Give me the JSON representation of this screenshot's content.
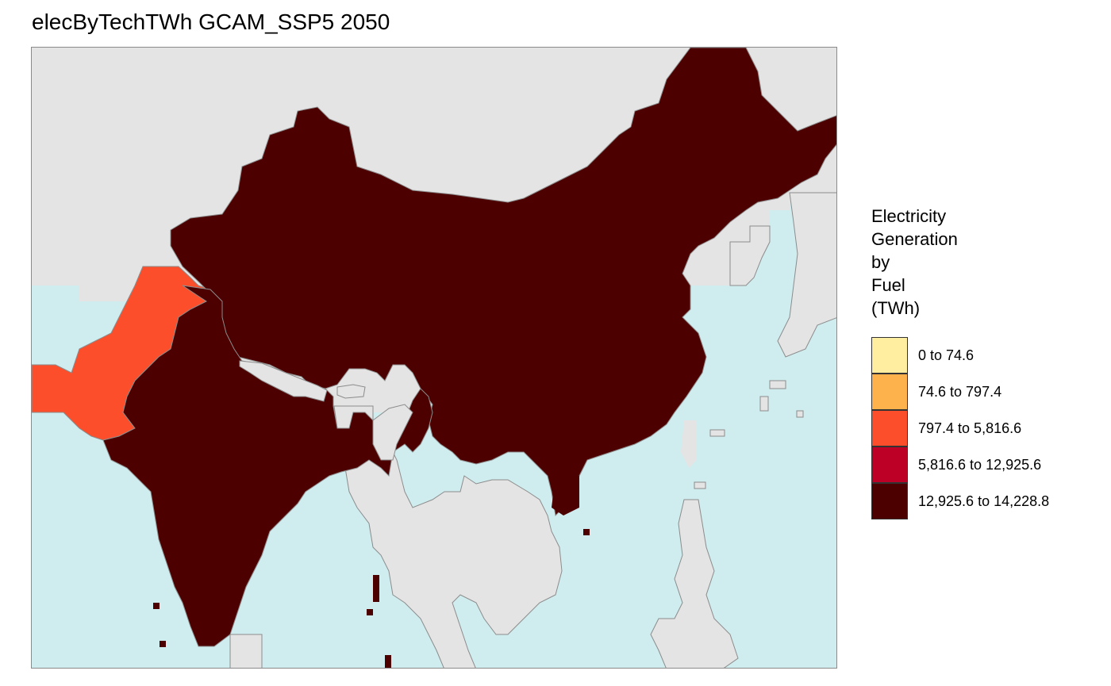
{
  "title": "elecByTechTWh GCAM_SSP5 2050",
  "colors": {
    "ocean": "#cfecee",
    "land_no_data": "#e4e4e4",
    "border": "#8c8c8c",
    "frame": "#8a8a8a"
  },
  "legend": {
    "title_lines": [
      "Electricity",
      "Generation",
      "by",
      "Fuel",
      "(TWh)"
    ],
    "items": [
      {
        "label": "0 to 74.6",
        "color": "#ffeda0"
      },
      {
        "label": "74.6 to 797.4",
        "color": "#feb24c"
      },
      {
        "label": "797.4 to 5,816.6",
        "color": "#fc4e2a"
      },
      {
        "label": "5,816.6 to 12,925.6",
        "color": "#bd0026"
      },
      {
        "label": "12,925.6 to 14,228.8",
        "color": "#4d0000"
      }
    ]
  },
  "regions": [
    {
      "name": "China",
      "class": "12,925.6 to 14,228.8",
      "color": "#4d0000"
    },
    {
      "name": "India",
      "class": "12,925.6 to 14,228.8",
      "color": "#4d0000"
    },
    {
      "name": "Pakistan",
      "class": "797.4 to 5,816.6",
      "color": "#fc4e2a"
    }
  ]
}
